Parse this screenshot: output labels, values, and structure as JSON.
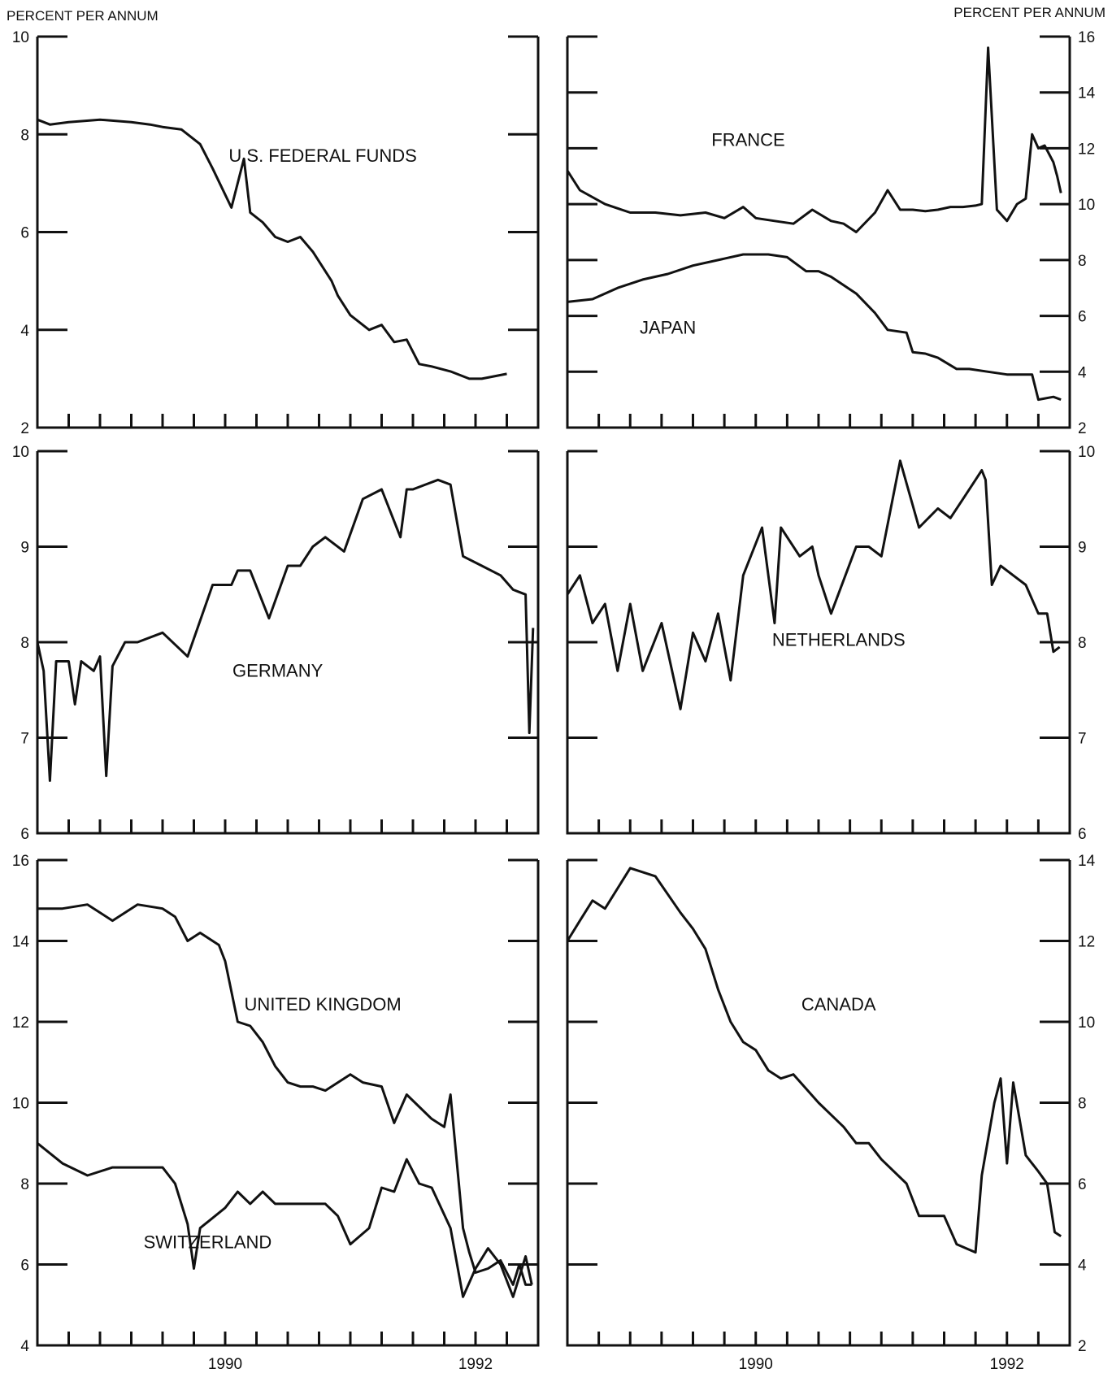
{
  "y_axis_label_left": "PERCENT PER ANNUM",
  "y_axis_label_right": "PERCENT PER ANNUM",
  "chart_data": [
    {
      "type": "line",
      "grid": false,
      "ylim": [
        2,
        10
      ],
      "yticks": [
        "10",
        "8",
        "6",
        "4",
        "2"
      ],
      "y_side": "left",
      "x_labels": [],
      "series": [
        {
          "name": "U.S. FEDERAL FUNDS",
          "x": [
            1989.0,
            1989.1,
            1989.25,
            1989.5,
            1989.75,
            1989.9,
            1990.0,
            1990.15,
            1990.3,
            1990.4,
            1990.55,
            1990.65,
            1990.7,
            1990.8,
            1990.9,
            1991.0,
            1991.1,
            1991.2,
            1991.3,
            1991.35,
            1991.4,
            1991.5,
            1991.65,
            1991.75,
            1991.85,
            1991.95,
            1992.05,
            1992.15,
            1992.3,
            1992.45,
            1992.55,
            1992.65,
            1992.75
          ],
          "y": [
            8.3,
            8.2,
            8.25,
            8.3,
            8.25,
            8.2,
            8.15,
            8.1,
            7.8,
            7.3,
            6.5,
            7.5,
            6.4,
            6.2,
            5.9,
            5.8,
            5.9,
            5.6,
            5.2,
            5.0,
            4.7,
            4.3,
            4.0,
            4.1,
            3.75,
            3.8,
            3.3,
            3.25,
            3.15,
            3.0,
            3.0,
            3.05,
            3.1
          ]
        }
      ]
    },
    {
      "type": "line",
      "grid": false,
      "ylim": [
        2,
        16
      ],
      "yticks": [
        "16",
        "14",
        "12",
        "10",
        "8",
        "6",
        "4",
        "2"
      ],
      "y_side": "right",
      "x_labels": [],
      "series": [
        {
          "name": "FRANCE",
          "x": [
            1989.0,
            1989.1,
            1989.3,
            1989.5,
            1989.7,
            1989.9,
            1990.1,
            1990.25,
            1990.4,
            1990.5,
            1990.65,
            1990.8,
            1990.95,
            1991.1,
            1991.2,
            1991.3,
            1991.45,
            1991.55,
            1991.65,
            1991.75,
            1991.85,
            1991.95,
            1992.05,
            1992.15,
            1992.25,
            1992.3,
            1992.35,
            1992.42,
            1992.5,
            1992.58,
            1992.65,
            1992.7,
            1992.75,
            1992.8,
            1992.87,
            1992.9,
            1992.93
          ],
          "y": [
            11.2,
            10.5,
            10.0,
            9.7,
            9.7,
            9.6,
            9.7,
            9.5,
            9.9,
            9.5,
            9.4,
            9.3,
            9.8,
            9.4,
            9.3,
            9.0,
            9.7,
            10.5,
            9.8,
            9.8,
            9.75,
            9.8,
            9.9,
            9.9,
            9.95,
            10.0,
            15.6,
            9.8,
            9.4,
            10.0,
            10.2,
            12.5,
            12.0,
            12.1,
            11.5,
            11.0,
            10.4
          ]
        },
        {
          "name": "JAPAN",
          "x": [
            1989.0,
            1989.2,
            1989.4,
            1989.6,
            1989.8,
            1990.0,
            1990.2,
            1990.4,
            1990.6,
            1990.75,
            1990.9,
            1991.0,
            1991.1,
            1991.3,
            1991.45,
            1991.55,
            1991.7,
            1991.75,
            1991.85,
            1991.95,
            1992.1,
            1992.2,
            1992.35,
            1992.5,
            1992.6,
            1992.7,
            1992.75,
            1992.87,
            1992.93
          ],
          "y": [
            6.5,
            6.6,
            7.0,
            7.3,
            7.5,
            7.8,
            8.0,
            8.2,
            8.2,
            8.1,
            7.6,
            7.6,
            7.4,
            6.8,
            6.1,
            5.5,
            5.4,
            4.7,
            4.65,
            4.5,
            4.1,
            4.1,
            4.0,
            3.9,
            3.9,
            3.9,
            3.0,
            3.1,
            3.0
          ]
        }
      ]
    },
    {
      "type": "line",
      "grid": false,
      "ylim": [
        6,
        10
      ],
      "yticks": [
        "10",
        "9",
        "8",
        "7",
        "6"
      ],
      "y_side": "left",
      "x_labels": [],
      "series": [
        {
          "name": "GERMANY",
          "x": [
            1989.0,
            1989.05,
            1989.1,
            1989.15,
            1989.25,
            1989.3,
            1989.35,
            1989.45,
            1989.5,
            1989.55,
            1989.6,
            1989.7,
            1989.8,
            1990.0,
            1990.2,
            1990.4,
            1990.55,
            1990.6,
            1990.7,
            1990.85,
            1991.0,
            1991.1,
            1991.2,
            1991.3,
            1991.45,
            1991.6,
            1991.75,
            1991.9,
            1991.95,
            1992.0,
            1992.1,
            1992.2,
            1992.3,
            1992.4,
            1992.55,
            1992.7,
            1992.8,
            1992.9,
            1992.93,
            1992.96
          ],
          "y": [
            8.0,
            7.7,
            6.55,
            7.8,
            7.8,
            7.35,
            7.8,
            7.7,
            7.85,
            6.6,
            7.75,
            8.0,
            8.0,
            8.1,
            7.85,
            8.6,
            8.6,
            8.75,
            8.75,
            8.25,
            8.8,
            8.8,
            9.0,
            9.1,
            8.95,
            9.5,
            9.6,
            9.1,
            9.6,
            9.6,
            9.65,
            9.7,
            9.65,
            8.9,
            8.8,
            8.7,
            8.55,
            8.5,
            7.05,
            8.15
          ]
        }
      ]
    },
    {
      "type": "line",
      "grid": false,
      "ylim": [
        6,
        10
      ],
      "yticks": [
        "10",
        "9",
        "8",
        "7",
        "6"
      ],
      "y_side": "right",
      "x_labels": [],
      "series": [
        {
          "name": "NETHERLANDS",
          "x": [
            1989.0,
            1989.1,
            1989.2,
            1989.3,
            1989.4,
            1989.5,
            1989.6,
            1989.75,
            1989.9,
            1990.0,
            1990.1,
            1990.2,
            1990.3,
            1990.4,
            1990.55,
            1990.65,
            1990.7,
            1990.85,
            1990.95,
            1991.0,
            1991.1,
            1991.3,
            1991.4,
            1991.5,
            1991.65,
            1991.8,
            1991.95,
            1992.05,
            1992.15,
            1992.25,
            1992.3,
            1992.33,
            1992.38,
            1992.45,
            1992.55,
            1992.65,
            1992.75,
            1992.82,
            1992.87,
            1992.92
          ],
          "y": [
            8.5,
            8.7,
            8.2,
            8.4,
            7.7,
            8.4,
            7.7,
            8.2,
            7.3,
            8.1,
            7.8,
            8.3,
            7.6,
            8.7,
            9.2,
            8.2,
            9.2,
            8.9,
            9.0,
            8.7,
            8.3,
            9.0,
            9.0,
            8.9,
            9.9,
            9.2,
            9.4,
            9.3,
            9.5,
            9.7,
            9.8,
            9.7,
            8.6,
            8.8,
            8.7,
            8.6,
            8.3,
            8.3,
            7.9,
            7.95
          ]
        }
      ]
    },
    {
      "type": "line",
      "grid": false,
      "ylim": [
        4,
        16
      ],
      "yticks": [
        "16",
        "14",
        "12",
        "10",
        "8",
        "6",
        "4"
      ],
      "y_side": "left",
      "x_labels": [
        "1990",
        "1992"
      ],
      "series": [
        {
          "name": "UNITED KINGDOM",
          "x": [
            1989.0,
            1989.2,
            1989.4,
            1989.6,
            1989.8,
            1990.0,
            1990.1,
            1990.2,
            1990.3,
            1990.45,
            1990.5,
            1990.6,
            1990.7,
            1990.8,
            1990.9,
            1991.0,
            1991.1,
            1991.2,
            1991.3,
            1991.5,
            1991.6,
            1991.75,
            1991.85,
            1991.95,
            1992.05,
            1992.15,
            1992.25,
            1992.3,
            1992.4,
            1992.45,
            1992.5,
            1992.6,
            1992.7,
            1992.8,
            1992.85,
            1992.9,
            1992.95
          ],
          "y": [
            14.8,
            14.8,
            14.9,
            14.5,
            14.9,
            14.8,
            14.6,
            14.0,
            14.2,
            13.9,
            13.5,
            12.0,
            11.9,
            11.5,
            10.9,
            10.5,
            10.4,
            10.4,
            10.3,
            10.7,
            10.5,
            10.4,
            9.5,
            10.2,
            9.9,
            9.6,
            9.4,
            10.2,
            6.9,
            6.3,
            5.8,
            5.9,
            6.1,
            5.5,
            6.0,
            5.5,
            5.5
          ]
        },
        {
          "name": "SWITZERLAND",
          "x": [
            1989.0,
            1989.2,
            1989.4,
            1989.6,
            1989.8,
            1990.0,
            1990.1,
            1990.2,
            1990.25,
            1990.3,
            1990.5,
            1990.6,
            1990.7,
            1990.8,
            1990.9,
            1991.0,
            1991.1,
            1991.2,
            1991.3,
            1991.4,
            1991.5,
            1991.65,
            1991.75,
            1991.85,
            1991.95,
            1992.05,
            1992.15,
            1992.3,
            1992.4,
            1992.5,
            1992.6,
            1992.7,
            1992.8,
            1992.9,
            1992.95
          ],
          "y": [
            9.0,
            8.5,
            8.2,
            8.4,
            8.4,
            8.4,
            8.0,
            7.0,
            5.9,
            6.9,
            7.4,
            7.8,
            7.5,
            7.8,
            7.5,
            7.5,
            7.5,
            7.5,
            7.5,
            7.2,
            6.5,
            6.9,
            7.9,
            7.8,
            8.6,
            8.0,
            7.9,
            6.9,
            5.2,
            5.9,
            6.4,
            6.0,
            5.2,
            6.2,
            5.5
          ]
        }
      ]
    },
    {
      "type": "line",
      "grid": false,
      "ylim": [
        2,
        14
      ],
      "yticks": [
        "14",
        "12",
        "10",
        "8",
        "6",
        "4",
        "2"
      ],
      "y_side": "right",
      "x_labels": [
        "1990",
        "1992"
      ],
      "series": [
        {
          "name": "CANADA",
          "x": [
            1989.0,
            1989.1,
            1989.2,
            1989.3,
            1989.5,
            1989.7,
            1989.9,
            1990.0,
            1990.1,
            1990.2,
            1990.3,
            1990.4,
            1990.5,
            1990.6,
            1990.7,
            1990.8,
            1991.0,
            1991.2,
            1991.3,
            1991.4,
            1991.5,
            1991.7,
            1991.8,
            1992.0,
            1992.1,
            1992.25,
            1992.3,
            1992.4,
            1992.45,
            1992.5,
            1992.55,
            1992.65,
            1992.75,
            1992.82,
            1992.88,
            1992.93
          ],
          "y": [
            12.0,
            12.5,
            13.0,
            12.8,
            13.8,
            13.6,
            12.7,
            12.3,
            11.8,
            10.8,
            10.0,
            9.5,
            9.3,
            8.8,
            8.6,
            8.7,
            8.0,
            7.4,
            7.0,
            7.0,
            6.6,
            6.0,
            5.2,
            5.2,
            4.5,
            4.3,
            6.2,
            8.0,
            8.6,
            6.5,
            8.5,
            6.7,
            6.3,
            6.0,
            4.8,
            4.7
          ]
        }
      ]
    }
  ]
}
